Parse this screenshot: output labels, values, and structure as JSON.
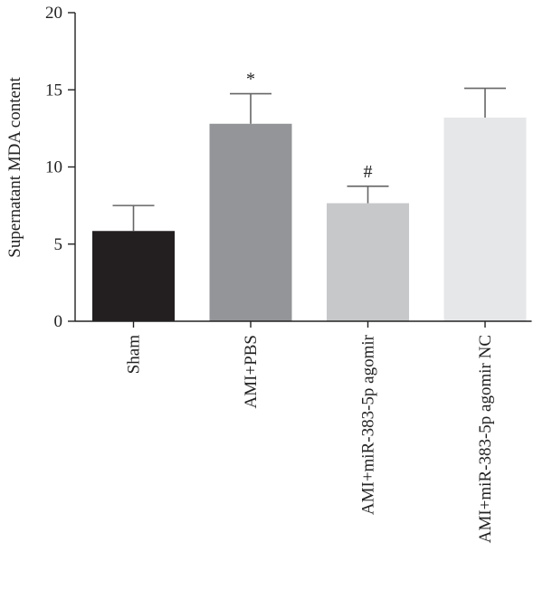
{
  "chart_data": {
    "type": "bar",
    "title": "",
    "xlabel": "",
    "ylabel": "Supernatant MDA content",
    "ylim": [
      0,
      20
    ],
    "yticks": [
      0,
      5,
      10,
      15,
      20
    ],
    "grid": false,
    "categories": [
      "Sham",
      "AMI+PBS",
      "AMI+miR-383-5p agomir",
      "AMI+miR-383-5p agomir NC"
    ],
    "values": [
      5.85,
      12.8,
      7.65,
      13.2
    ],
    "errors": [
      1.65,
      1.95,
      1.1,
      1.9
    ],
    "annotations": [
      "",
      "*",
      "#",
      ""
    ],
    "colors": [
      "#231f20",
      "#939598",
      "#c7c8ca",
      "#e6e7e8"
    ]
  }
}
